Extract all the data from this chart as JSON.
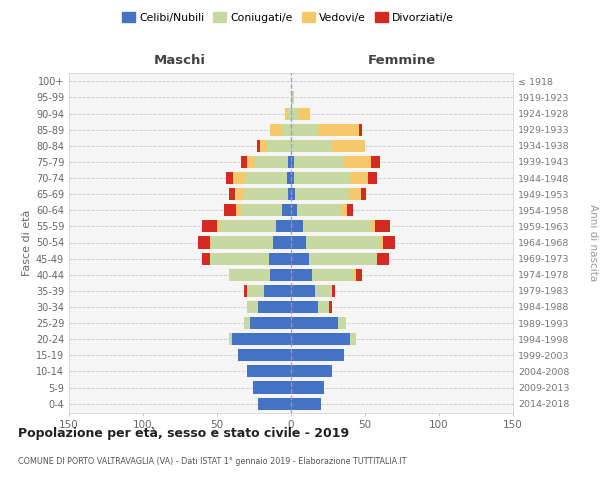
{
  "age_groups": [
    "0-4",
    "5-9",
    "10-14",
    "15-19",
    "20-24",
    "25-29",
    "30-34",
    "35-39",
    "40-44",
    "45-49",
    "50-54",
    "55-59",
    "60-64",
    "65-69",
    "70-74",
    "75-79",
    "80-84",
    "85-89",
    "90-94",
    "95-99",
    "100+"
  ],
  "birth_years": [
    "2014-2018",
    "2009-2013",
    "2004-2008",
    "1999-2003",
    "1994-1998",
    "1989-1993",
    "1984-1988",
    "1979-1983",
    "1974-1978",
    "1969-1973",
    "1964-1968",
    "1959-1963",
    "1954-1958",
    "1949-1953",
    "1944-1948",
    "1939-1943",
    "1934-1938",
    "1929-1933",
    "1924-1928",
    "1919-1923",
    "≤ 1918"
  ],
  "colors": {
    "celibi": "#4472c4",
    "coniugati": "#c5d9a0",
    "vedovi": "#f5c96a",
    "divorziati": "#d42b20"
  },
  "maschi": {
    "celibi": [
      22,
      26,
      30,
      36,
      40,
      28,
      22,
      18,
      14,
      15,
      12,
      10,
      6,
      2,
      3,
      2,
      0,
      0,
      0,
      0,
      0
    ],
    "coniugati": [
      0,
      0,
      0,
      0,
      2,
      4,
      8,
      12,
      28,
      40,
      42,
      38,
      28,
      30,
      28,
      22,
      16,
      6,
      2,
      0,
      0
    ],
    "vedovi": [
      0,
      0,
      0,
      0,
      0,
      0,
      0,
      0,
      0,
      0,
      1,
      2,
      3,
      6,
      8,
      6,
      5,
      8,
      2,
      0,
      0
    ],
    "divorziati": [
      0,
      0,
      0,
      0,
      0,
      0,
      0,
      2,
      0,
      5,
      8,
      10,
      8,
      4,
      5,
      4,
      2,
      0,
      0,
      0,
      0
    ]
  },
  "femmine": {
    "celibi": [
      20,
      22,
      28,
      36,
      40,
      32,
      18,
      16,
      14,
      12,
      10,
      8,
      4,
      3,
      2,
      2,
      0,
      0,
      0,
      0,
      0
    ],
    "coniugati": [
      0,
      0,
      0,
      0,
      4,
      5,
      8,
      12,
      28,
      46,
      50,
      46,
      30,
      36,
      38,
      34,
      28,
      18,
      5,
      2,
      0
    ],
    "vedovi": [
      0,
      0,
      0,
      0,
      0,
      0,
      0,
      0,
      2,
      0,
      2,
      3,
      4,
      8,
      12,
      18,
      22,
      28,
      8,
      0,
      0
    ],
    "divorziati": [
      0,
      0,
      0,
      0,
      0,
      0,
      2,
      2,
      4,
      8,
      8,
      10,
      4,
      4,
      6,
      6,
      0,
      2,
      0,
      0,
      0
    ]
  },
  "xlim": 150,
  "xticks": [
    -150,
    -100,
    -50,
    0,
    50,
    100,
    150
  ],
  "title": "Popolazione per età, sesso e stato civile - 2019",
  "subtitle": "COMUNE DI PORTO VALTRAVAGLIA (VA) - Dati ISTAT 1° gennaio 2019 - Elaborazione TUTTITALIA.IT",
  "ylabel": "Fasce di età",
  "ylabel_right": "Anni di nascita",
  "maschi_label": "Maschi",
  "femmine_label": "Femmine",
  "legend_labels": [
    "Celibi/Nubili",
    "Coniugati/e",
    "Vedovi/e",
    "Divorziati/e"
  ],
  "bar_height": 0.75,
  "grid_color": "#cccccc",
  "center_line_color": "#9999bb",
  "bg_color": "#f5f5f5"
}
